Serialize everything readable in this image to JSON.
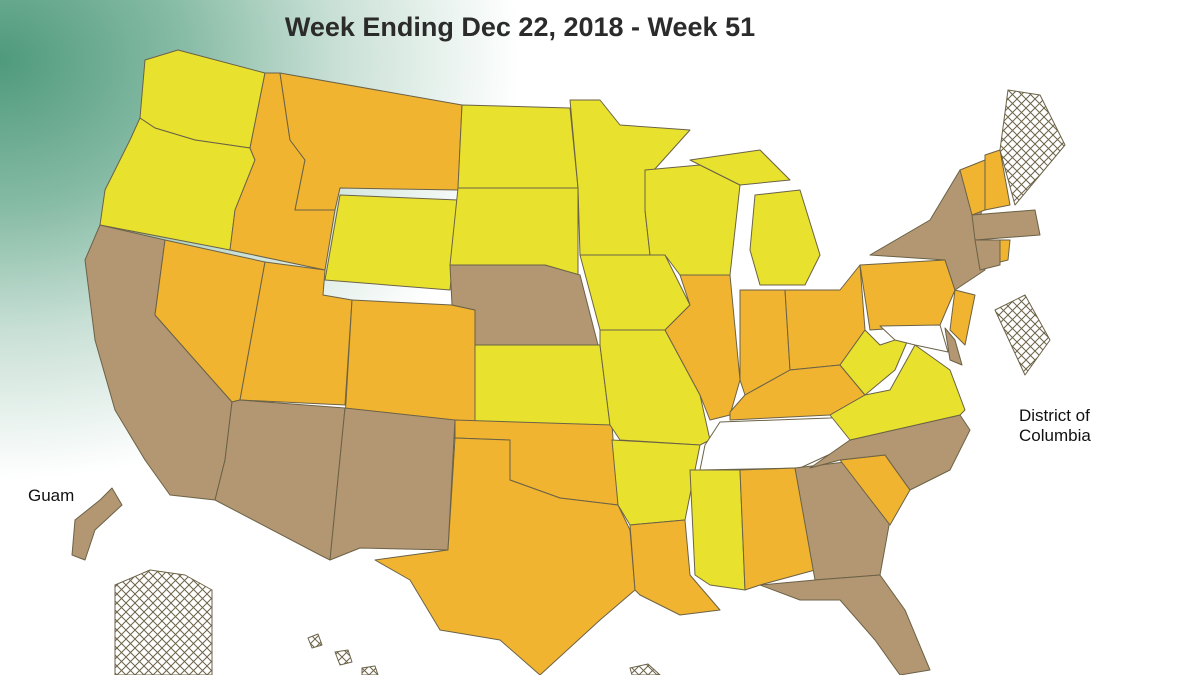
{
  "title": "Week Ending Dec 22, 2018 - Week 51",
  "labels": {
    "guam": "Guam",
    "dc": "District of Columbia"
  },
  "palette": {
    "yellow": "#e8e22e",
    "orange": "#f0b431",
    "tan": "#b39672",
    "hatch": "#8b5a1e",
    "none": "#ffffff"
  },
  "fills": {
    "WA": "yellow",
    "OR": "yellow",
    "CA": "tan",
    "NV": "orange",
    "ID": "orange",
    "MT": "orange",
    "WY": "yellow",
    "UT": "orange",
    "CO": "orange",
    "AZ": "tan",
    "NM": "tan",
    "ND": "yellow",
    "SD": "yellow",
    "NE": "tan",
    "KS": "yellow",
    "OK": "orange",
    "TX": "orange",
    "MN": "yellow",
    "IA": "yellow",
    "MO": "yellow",
    "AR": "yellow",
    "LA": "orange",
    "WI": "yellow",
    "IL": "orange",
    "MI": "yellow",
    "IN": "orange",
    "OH": "orange",
    "KY": "orange",
    "TN": "none",
    "MS": "yellow",
    "AL": "orange",
    "GA": "tan",
    "FL": "tan",
    "SC": "orange",
    "NC": "tan",
    "VA": "yellow",
    "WV": "yellow",
    "PA": "orange",
    "NY": "tan",
    "NJ": "orange",
    "MD": "none",
    "DE": "tan",
    "VT": "orange",
    "NH": "orange",
    "ME": "hatch",
    "MA": "tan",
    "CT": "tan",
    "RI": "orange",
    "DC": "hatch",
    "GU": "tan",
    "AK": "hatch",
    "HI": "hatch",
    "PR": "hatch"
  }
}
